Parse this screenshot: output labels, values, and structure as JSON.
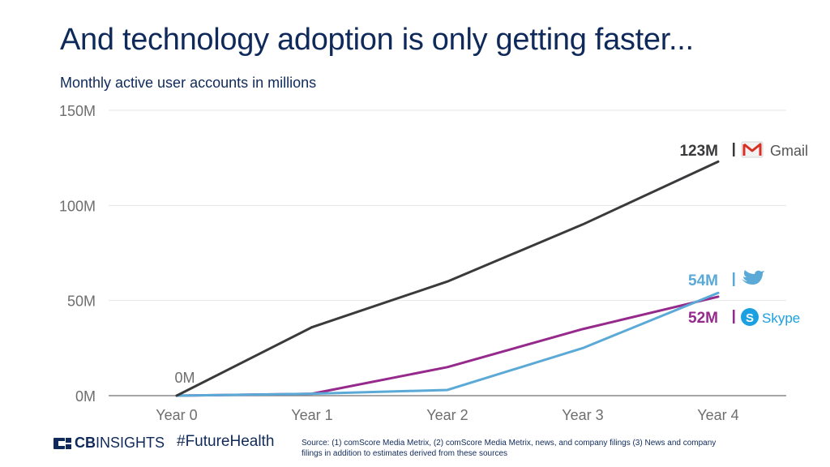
{
  "header": {
    "title": "And technology adoption is only getting faster...",
    "subtitle": "Monthly active user accounts in millions"
  },
  "footer": {
    "logo_cb": "CB",
    "logo_insights": "INSIGHTS",
    "hashtag": "#FutureHealth",
    "source": "Source: (1) comScore Media Metrix, (2) comScore Media Metrix, news, and company filings (3) News and company filings in addition to estimates derived from these sources"
  },
  "colors": {
    "gmail": "#3a3a3c",
    "twitter": "#5ba9d6",
    "skype": "#962a8c",
    "title": "#0f2a5a",
    "axis_text": "#6e6e6e",
    "grid": "#e6e6e6"
  },
  "chart_data": {
    "type": "line",
    "title": "And technology adoption is only getting faster...",
    "subtitle": "Monthly active user accounts in millions",
    "categories": [
      "Year 0",
      "Year 1",
      "Year 2",
      "Year 3",
      "Year 4"
    ],
    "yticks": [
      0,
      50,
      100,
      150
    ],
    "ytick_labels": [
      "0M",
      "50M",
      "100M",
      "150M"
    ],
    "ylim": [
      0,
      150
    ],
    "grid": true,
    "series": [
      {
        "name": "Gmail",
        "key": "gmail",
        "values": [
          0,
          36,
          60,
          90,
          123
        ],
        "end_label": "123M",
        "icon": "gmail-icon"
      },
      {
        "name": "",
        "key": "twitter",
        "values": [
          0,
          1,
          3,
          25,
          54
        ],
        "end_label": "54M",
        "icon": "twitter-icon"
      },
      {
        "name": "Skype",
        "key": "skype",
        "values": [
          0,
          1,
          15,
          35,
          52
        ],
        "end_label": "52M",
        "icon": "skype-icon"
      }
    ],
    "annotations": [
      {
        "category": "Year 0",
        "value": 0,
        "text": "0M"
      }
    ]
  }
}
